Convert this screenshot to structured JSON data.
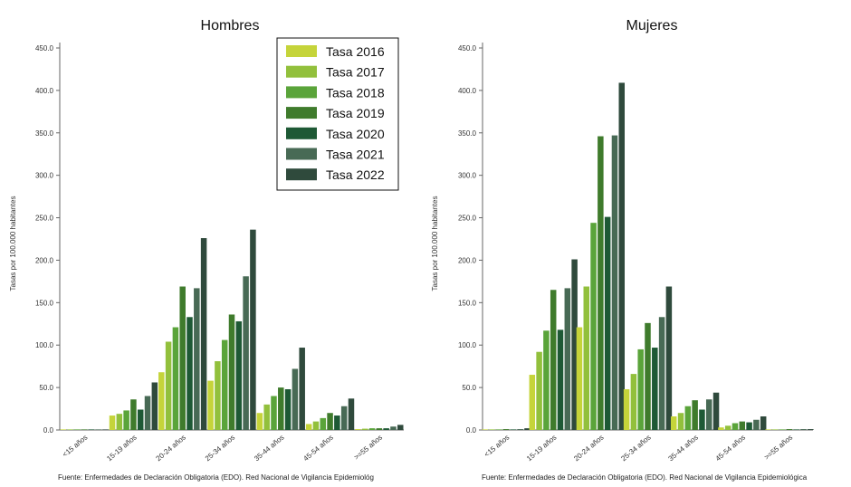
{
  "colors": [
    "#c5d43a",
    "#92c03c",
    "#5aa43a",
    "#3f7b2c",
    "#1e5935",
    "#486a55",
    "#2f4a3c"
  ],
  "chart_data": [
    {
      "type": "bar",
      "title": "Hombres",
      "ylabel": "Tasas por 100.000 habitantes",
      "ylim": [
        0,
        450
      ],
      "yticks": [
        "0.0",
        "50.0",
        "100.0",
        "150.0",
        "200.0",
        "250.0",
        "300.0",
        "350.0",
        "400.0",
        "450.0"
      ],
      "categories": [
        "<15 años",
        "15-19 años",
        "20-24 años",
        "25-34 años",
        "35-44 años",
        "45-54 años",
        ">=55 años"
      ],
      "series": [
        {
          "name": "Tasa 2016",
          "values": [
            0,
            17,
            68,
            58,
            20,
            7,
            1
          ]
        },
        {
          "name": "Tasa 2017",
          "values": [
            0,
            19,
            104,
            81,
            30,
            10,
            1.5
          ]
        },
        {
          "name": "Tasa 2018",
          "values": [
            0,
            23,
            121,
            106,
            40,
            14,
            2
          ]
        },
        {
          "name": "Tasa 2019",
          "values": [
            0,
            36,
            169,
            136,
            50,
            20,
            2
          ]
        },
        {
          "name": "Tasa 2020",
          "values": [
            0,
            24,
            133,
            128,
            48,
            17,
            2
          ]
        },
        {
          "name": "Tasa 2021",
          "values": [
            0.5,
            40,
            167,
            181,
            72,
            28,
            4
          ]
        },
        {
          "name": "Tasa 2022",
          "values": [
            0.5,
            56,
            226,
            236,
            97,
            37,
            6
          ]
        }
      ],
      "legend": "top-right",
      "grid": false,
      "source": "Fuente: Enfermedades de Declaración Obligatoria (EDO). Red Nacional de Vigilancia Epidemiológ"
    },
    {
      "type": "bar",
      "title": "Mujeres",
      "ylabel": "Tasas por 100.000 habitantes",
      "ylim": [
        0,
        450
      ],
      "yticks": [
        "0.0",
        "50.0",
        "100.0",
        "150.0",
        "200.0",
        "250.0",
        "300.0",
        "350.0",
        "400.0",
        "450.0"
      ],
      "categories": [
        "<15 años",
        "15-19 años",
        "20-24 años",
        "25-34 años",
        "35-44 años",
        "45-54 años",
        ">=55 años"
      ],
      "series": [
        {
          "name": "Tasa 2016",
          "values": [
            0.5,
            65,
            121,
            48,
            16,
            3,
            0.5
          ]
        },
        {
          "name": "Tasa 2017",
          "values": [
            0.5,
            92,
            169,
            66,
            20,
            5,
            0.5
          ]
        },
        {
          "name": "Tasa 2018",
          "values": [
            0.5,
            117,
            244,
            95,
            28,
            8,
            0.5
          ]
        },
        {
          "name": "Tasa 2019",
          "values": [
            1,
            165,
            346,
            126,
            35,
            10,
            1
          ]
        },
        {
          "name": "Tasa 2020",
          "values": [
            0.5,
            118,
            251,
            97,
            24,
            9,
            0.5
          ]
        },
        {
          "name": "Tasa 2021",
          "values": [
            1,
            167,
            347,
            133,
            36,
            12,
            1
          ]
        },
        {
          "name": "Tasa 2022",
          "values": [
            2,
            201,
            409,
            169,
            44,
            16,
            1
          ]
        }
      ],
      "grid": false,
      "source": "Fuente: Enfermedades de Declaración Obligatoria (EDO). Red Nacional de Vigilancia Epidemiológica"
    }
  ]
}
